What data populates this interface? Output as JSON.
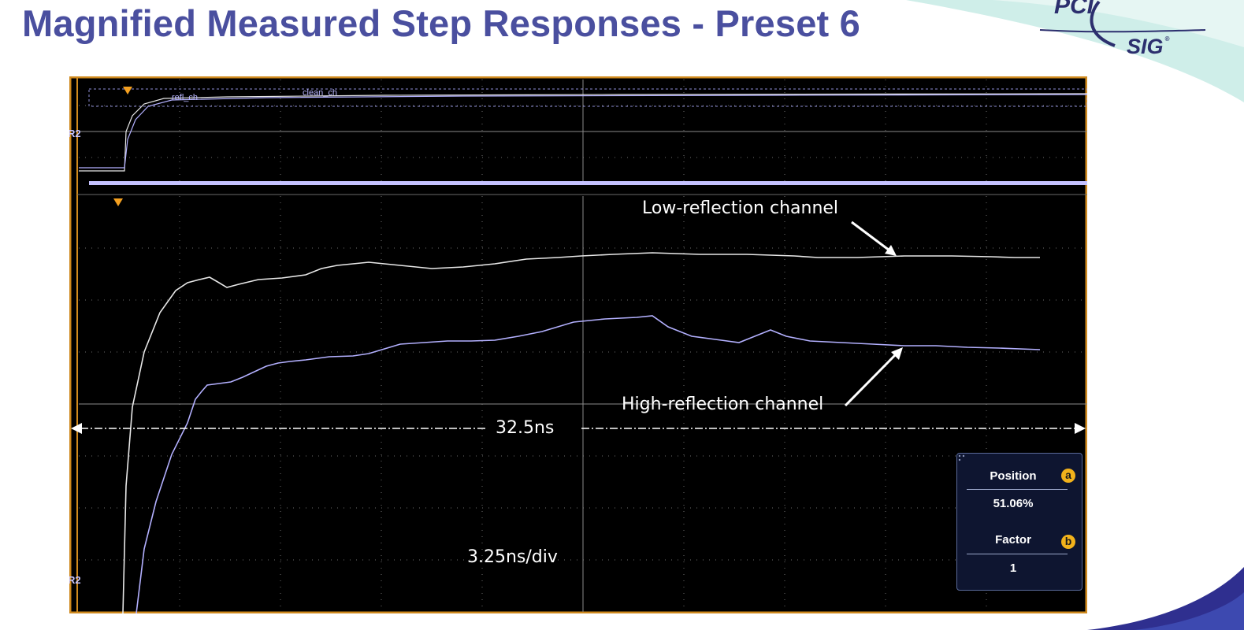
{
  "slide": {
    "title": "Magnified Measured Step Responses - Preset 6",
    "logo": {
      "top": "PCI",
      "bottom": "SIG",
      "mark": "®"
    }
  },
  "scope": {
    "overview": {
      "trace_labels": [
        "refl_ch",
        "clean_ch"
      ],
      "ref_tag": "R2"
    },
    "main": {
      "ref_tag": "R2"
    },
    "annotations": {
      "low": "Low-reflection channel",
      "high": "High-reflection channel",
      "span": "32.5ns",
      "timebase": "3.25ns/div"
    },
    "zoom_panel": {
      "position_label": "Position",
      "position_value": "51.06%",
      "position_badge": "a",
      "factor_label": "Factor",
      "factor_value": "1",
      "factor_badge": "b"
    },
    "colors": {
      "frame": "#d08a1e",
      "low_trace": "#e8e8e8",
      "high_trace": "#b3b0ff",
      "grid": "#7a7a7a"
    }
  }
}
